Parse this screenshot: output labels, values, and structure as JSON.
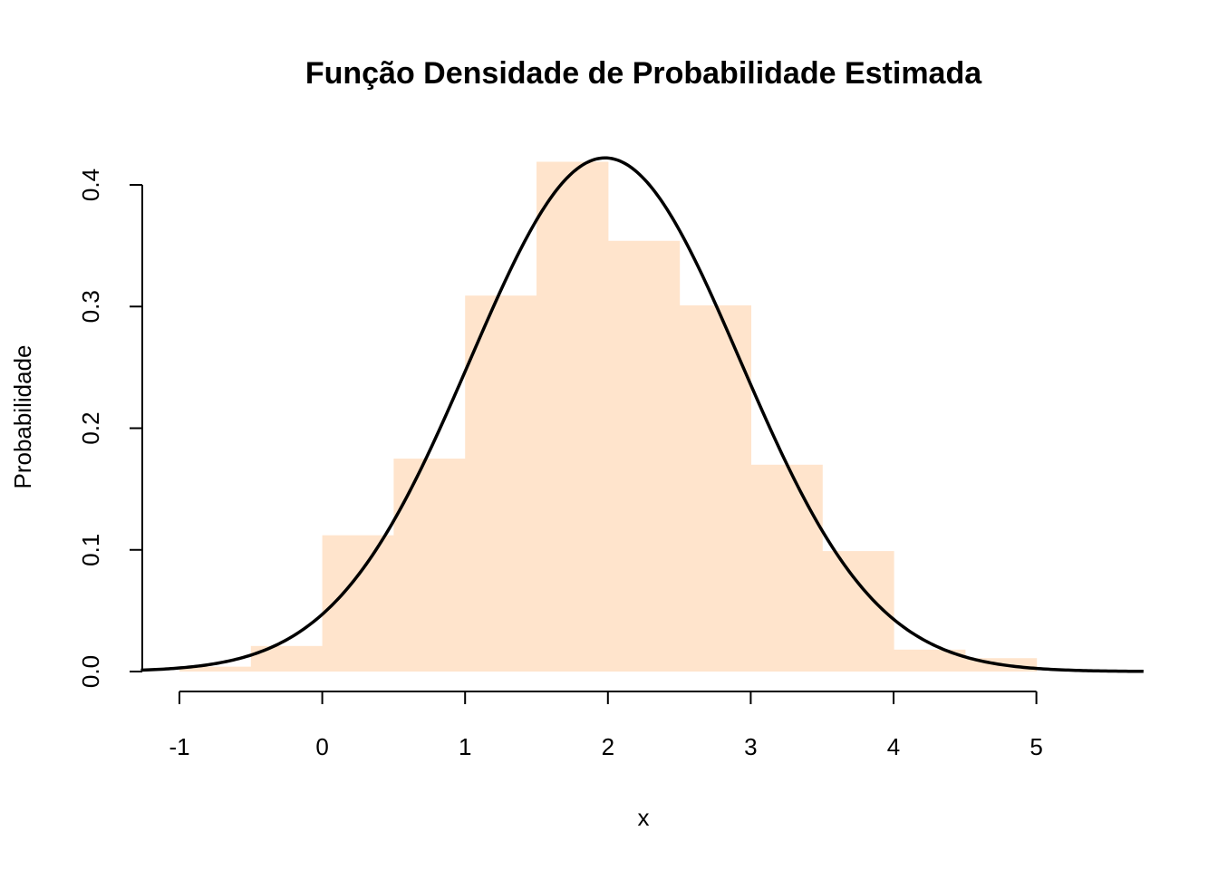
{
  "chart_data": {
    "type": "bar",
    "title": "Função Densidade de Probabilidade Estimada",
    "xlabel": "x",
    "ylabel": "Probabilidade",
    "xlim": [
      -1.27,
      5.75
    ],
    "ylim": [
      0,
      0.42
    ],
    "x_ticks": [
      "-1",
      "0",
      "1",
      "2",
      "3",
      "4",
      "5"
    ],
    "x_tick_values": [
      -1,
      0,
      1,
      2,
      3,
      4,
      5
    ],
    "y_ticks": [
      "0.0",
      "0.1",
      "0.2",
      "0.3",
      "0.4"
    ],
    "y_tick_values": [
      0,
      0.1,
      0.2,
      0.3,
      0.4
    ],
    "grid": false,
    "legend": "none",
    "histogram": {
      "color": "#FFE4CC",
      "bins": [
        {
          "x0": -1.0,
          "x1": -0.5,
          "value": 0.004
        },
        {
          "x0": -0.5,
          "x1": 0.0,
          "value": 0.021
        },
        {
          "x0": 0.0,
          "x1": 0.5,
          "value": 0.112
        },
        {
          "x0": 0.5,
          "x1": 1.0,
          "value": 0.175
        },
        {
          "x0": 1.0,
          "x1": 1.5,
          "value": 0.309
        },
        {
          "x0": 1.5,
          "x1": 2.0,
          "value": 0.419
        },
        {
          "x0": 2.0,
          "x1": 2.5,
          "value": 0.354
        },
        {
          "x0": 2.5,
          "x1": 3.0,
          "value": 0.301
        },
        {
          "x0": 3.0,
          "x1": 3.5,
          "value": 0.17
        },
        {
          "x0": 3.5,
          "x1": 4.0,
          "value": 0.099
        },
        {
          "x0": 4.0,
          "x1": 4.5,
          "value": 0.018
        },
        {
          "x0": 4.5,
          "x1": 5.0,
          "value": 0.011
        }
      ]
    },
    "density_curve": {
      "type": "line",
      "color": "#000000",
      "mean": 1.98,
      "sd": 0.945
    }
  }
}
